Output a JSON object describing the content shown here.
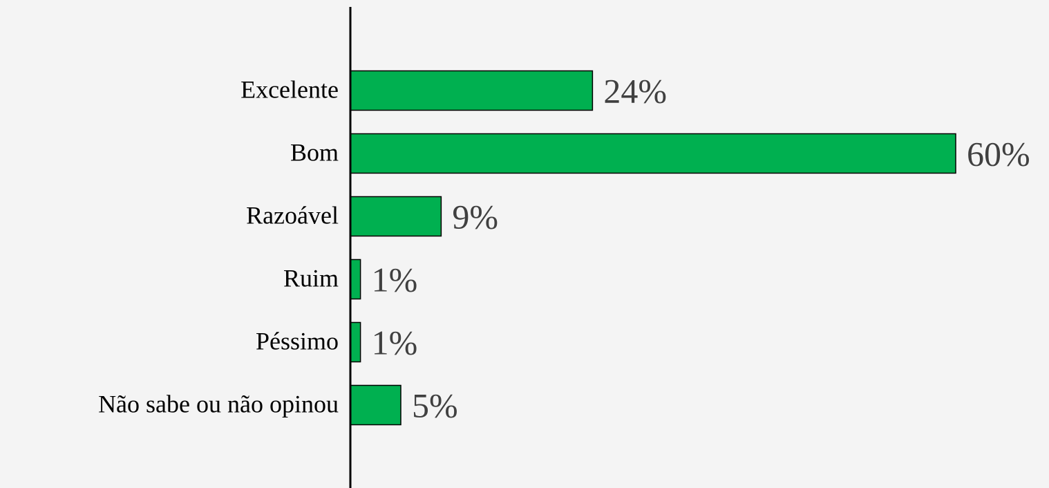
{
  "chart_data": {
    "type": "bar",
    "orientation": "horizontal",
    "categories": [
      "Excelente",
      "Bom",
      "Razoável",
      "Ruim",
      "Péssimo",
      "Não sabe ou não opinou"
    ],
    "values": [
      24,
      60,
      9,
      1,
      1,
      5
    ],
    "value_labels": [
      "24%",
      "60%",
      "9%",
      "1%",
      "1%",
      "5%"
    ],
    "color": "#00b050"
  }
}
